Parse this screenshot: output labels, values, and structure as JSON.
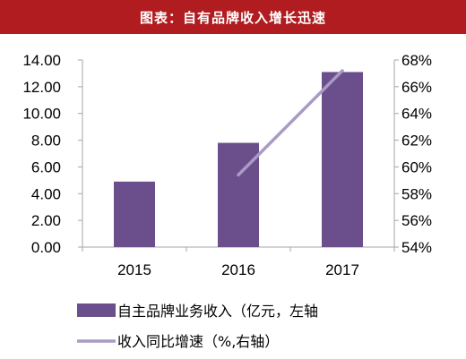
{
  "title": "图表：自有品牌收入增长迅速",
  "colors": {
    "title_bg": "#b01c1f",
    "bar": "#6b4f8c",
    "line": "#a99bc4",
    "axis": "#a6a6a6"
  },
  "chart_data": {
    "type": "bar",
    "categories": [
      "2015",
      "2016",
      "2017"
    ],
    "series": [
      {
        "name": "自主品牌业务收入（亿元，左轴",
        "type": "bar",
        "axis": "left",
        "values": [
          4.9,
          7.8,
          13.1
        ]
      },
      {
        "name": "收入同比增速（%,右轴）",
        "type": "line",
        "axis": "right",
        "values": [
          null,
          59.4,
          67.2
        ]
      }
    ],
    "ylim_left": [
      0,
      14
    ],
    "ylim_right": [
      54,
      68
    ],
    "left_ticks": [
      "0.00",
      "2.00",
      "4.00",
      "6.00",
      "8.00",
      "10.00",
      "12.00",
      "14.00"
    ],
    "right_ticks": [
      "54%",
      "56%",
      "58%",
      "60%",
      "62%",
      "64%",
      "66%",
      "68%"
    ],
    "grid": false,
    "legend_position": "bottom"
  }
}
